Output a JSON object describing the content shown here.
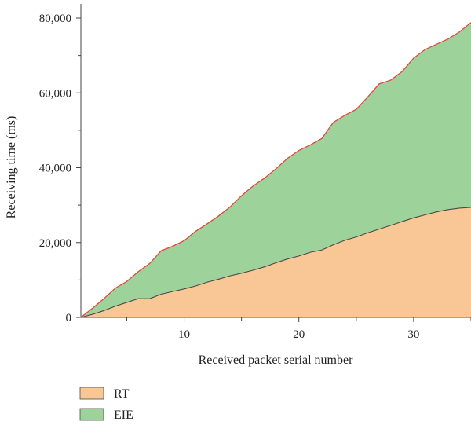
{
  "chart_data": {
    "type": "area",
    "stacked": true,
    "xlabel": "Received packet serial number",
    "ylabel": "Receiving time (ms)",
    "xlim": [
      1,
      35
    ],
    "ylim": [
      0,
      80000
    ],
    "x_ticks": [
      10,
      20,
      30
    ],
    "y_ticks": [
      0,
      20000,
      40000,
      60000,
      80000
    ],
    "x_tick_labels": [
      "10",
      "20",
      "30"
    ],
    "y_tick_labels": [
      "0",
      "20,000",
      "40,000",
      "60,000",
      "80,000"
    ],
    "legend_position": "bottom-left",
    "x": [
      1,
      2,
      3,
      4,
      5,
      6,
      7,
      8,
      9,
      10,
      11,
      12,
      13,
      14,
      15,
      16,
      17,
      18,
      19,
      20,
      21,
      22,
      23,
      24,
      25,
      26,
      27,
      28,
      29,
      30,
      31,
      32,
      33,
      34,
      35
    ],
    "series": [
      {
        "name": "RT",
        "color": "#f9c795",
        "values": [
          0,
          800,
          1800,
          3000,
          4000,
          5000,
          5000,
          6200,
          6900,
          7600,
          8400,
          9400,
          10200,
          11100,
          11800,
          12600,
          13500,
          14600,
          15600,
          16400,
          17400,
          18000,
          19400,
          20600,
          21500,
          22600,
          23600,
          24600,
          25600,
          26600,
          27400,
          28200,
          28800,
          29200,
          29400
        ]
      },
      {
        "name": "EIE",
        "color": "#9dd39b",
        "values": [
          0,
          1600,
          3200,
          4800,
          5600,
          7200,
          9400,
          11600,
          12100,
          12900,
          14600,
          15600,
          16900,
          18400,
          20700,
          22500,
          23700,
          25100,
          26900,
          28200,
          28700,
          29800,
          32700,
          33400,
          34100,
          36300,
          38800,
          38800,
          40100,
          42700,
          44200,
          44800,
          45600,
          47100,
          49400
        ]
      }
    ],
    "top_line_color": "#e8453c",
    "boundary_line_color": "#4a4a4a"
  }
}
